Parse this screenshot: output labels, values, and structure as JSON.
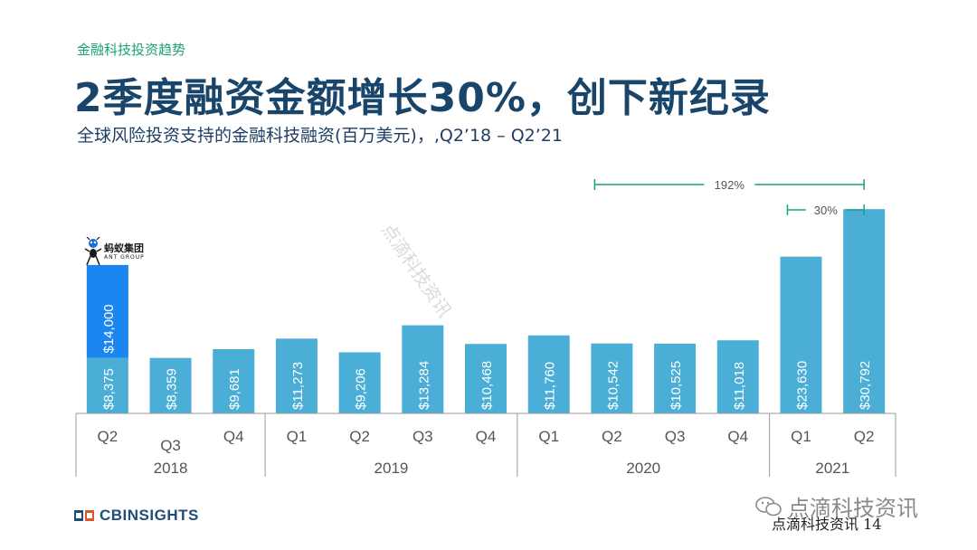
{
  "header": {
    "eyebrow": "金融科技投资趋势",
    "title": "2季度融资金额增长30%，创下新纪录",
    "subtitle": "全球风险投资支持的金融科技融资(百万美元)，,Q2’18 – Q2’21"
  },
  "chart_data": {
    "type": "bar",
    "quarters": [
      "Q2",
      "Q3",
      "Q4",
      "Q1",
      "Q2",
      "Q3",
      "Q4",
      "Q1",
      "Q2",
      "Q3",
      "Q4",
      "Q1",
      "Q2"
    ],
    "years": [
      {
        "label": "2018",
        "start": 0,
        "end": 2
      },
      {
        "label": "2019",
        "start": 3,
        "end": 6
      },
      {
        "label": "2020",
        "start": 7,
        "end": 10
      },
      {
        "label": "2021",
        "start": 11,
        "end": 12
      }
    ],
    "values": [
      8375,
      8359,
      9681,
      11273,
      9206,
      13284,
      10468,
      11760,
      10542,
      10525,
      11018,
      23630,
      30792
    ],
    "value_labels": [
      "$8,375",
      "$8,359",
      "$9,681",
      "$11,273",
      "$9,206",
      "$13,284",
      "$10,468",
      "$11,760",
      "$10,542",
      "$10,525",
      "$11,018",
      "$23,630",
      "$30,792"
    ],
    "stacked": {
      "index": 0,
      "value": 14000,
      "label": "$14,000",
      "logo_text": "蚂蚁集团",
      "logo_subtext": "ANT GROUP"
    },
    "ylim": [
      0,
      33000
    ],
    "colors": {
      "bar": "#4aaed6",
      "stack": "#1b86f0",
      "bracket": "#1aa17a"
    },
    "annotations": [
      {
        "label": "192%",
        "from": 8,
        "to": 12
      },
      {
        "label": "30%",
        "from": 11,
        "to": 12
      }
    ]
  },
  "footer": {
    "brand": "CBINSIGHTS",
    "wechat": "点滴科技资讯",
    "note": "点滴科技资讯 14",
    "watermark": "点滴科技资讯"
  }
}
